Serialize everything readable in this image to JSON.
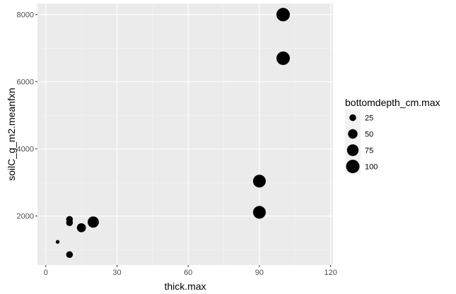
{
  "chart_data": {
    "type": "scatter",
    "xlabel": "thick.max",
    "ylabel": "soilC_g_m2.meanfxn",
    "xlim": [
      -3.5,
      121
    ],
    "ylim": [
      540,
      8330
    ],
    "x_ticks": [
      0,
      30,
      60,
      90,
      120
    ],
    "y_ticks": [
      2000,
      4000,
      6000,
      8000
    ],
    "grid": true,
    "legend_position": "right",
    "size_legend": {
      "title": "bottomdepth_cm.max",
      "entries": [
        {
          "label": "25",
          "value": 25
        },
        {
          "label": "50",
          "value": 50
        },
        {
          "label": "75",
          "value": 75
        },
        {
          "label": "100",
          "value": 100
        }
      ]
    },
    "points": [
      {
        "x": 5,
        "y": 1230,
        "size": 8
      },
      {
        "x": 10,
        "y": 850,
        "size": 25
      },
      {
        "x": 10,
        "y": 1800,
        "size": 25
      },
      {
        "x": 10,
        "y": 1900,
        "size": 25
      },
      {
        "x": 15,
        "y": 1650,
        "size": 45
      },
      {
        "x": 20,
        "y": 1820,
        "size": 70
      },
      {
        "x": 90,
        "y": 2110,
        "size": 90
      },
      {
        "x": 90,
        "y": 3040,
        "size": 90
      },
      {
        "x": 100,
        "y": 6700,
        "size": 100
      },
      {
        "x": 100,
        "y": 8000,
        "size": 100
      }
    ]
  }
}
